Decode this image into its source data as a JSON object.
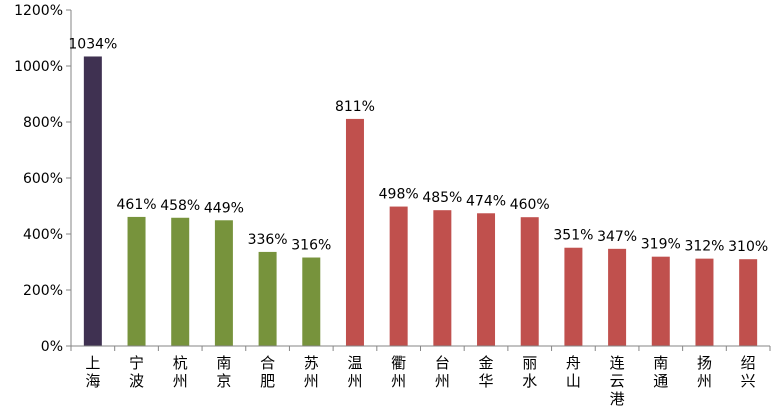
{
  "chart_data": {
    "type": "bar",
    "categories": [
      "上海",
      "宁波",
      "杭州",
      "南京",
      "合肥",
      "苏州",
      "温州",
      "衢州",
      "台州",
      "金华",
      "丽水",
      "舟山",
      "连云港",
      "南通",
      "扬州",
      "绍兴"
    ],
    "values": [
      1034,
      461,
      458,
      449,
      336,
      316,
      811,
      498,
      485,
      474,
      460,
      351,
      347,
      319,
      312,
      310
    ],
    "data_labels": [
      "1034%",
      "461%",
      "458%",
      "449%",
      "336%",
      "316%",
      "811%",
      "498%",
      "485%",
      "474%",
      "460%",
      "351%",
      "347%",
      "319%",
      "312%",
      "310%"
    ],
    "colors": [
      "#3f3151",
      "#77933c",
      "#77933c",
      "#77933c",
      "#77933c",
      "#77933c",
      "#c0504d",
      "#c0504d",
      "#c0504d",
      "#c0504d",
      "#c0504d",
      "#c0504d",
      "#c0504d",
      "#c0504d",
      "#c0504d",
      "#c0504d"
    ],
    "y_ticks": [
      0,
      200,
      400,
      600,
      800,
      1000,
      1200
    ],
    "y_tick_labels": [
      "0%",
      "200%",
      "400%",
      "600%",
      "800%",
      "1000%",
      "1200%"
    ],
    "ylim": [
      0,
      1200
    ],
    "grid": false,
    "legend": "none"
  }
}
